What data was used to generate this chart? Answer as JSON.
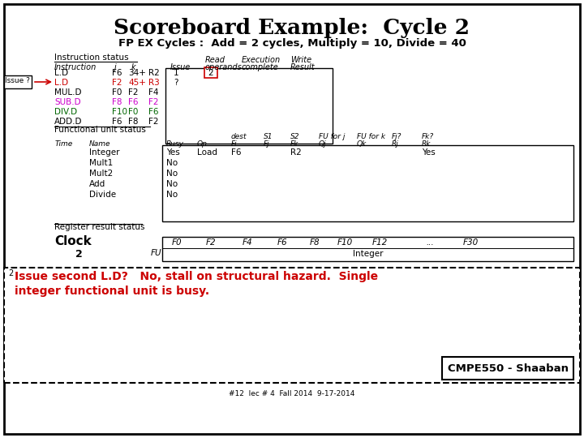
{
  "title": "Scoreboard Example:  Cycle 2",
  "subtitle": "FP EX Cycles :  Add = 2 cycles, Multiply = 10, Divide = 40",
  "bg_color": "#ffffff",
  "instruction_status_label": "Instruction status",
  "instructions": [
    {
      "name": "L.D",
      "j": "F6",
      "k": "34+",
      "dest": "R2",
      "issue": "1",
      "read": "2",
      "color": "#000000",
      "highlight_read": true
    },
    {
      "name": "L.D",
      "j": "F2",
      "k": "45+",
      "dest": "R3",
      "issue": "?",
      "read": "",
      "color": "#cc0000",
      "highlight_read": false
    },
    {
      "name": "MUL.DF0",
      "j": "F2",
      "k": "F4",
      "dest": "",
      "issue": "",
      "read": "",
      "color": "#000000",
      "highlight_read": false
    },
    {
      "name": "SUB.DF8",
      "j": "F6",
      "k": "F2",
      "dest": "",
      "issue": "",
      "read": "",
      "color": "#cc00cc",
      "highlight_read": false
    },
    {
      "name": "DIV.D F10",
      "j": "F0",
      "k": "F6",
      "dest": "",
      "issue": "",
      "read": "",
      "color": "#006600",
      "highlight_read": false
    },
    {
      "name": "ADD.DF6",
      "j": "F8",
      "k": "F2",
      "dest": "",
      "issue": "",
      "read": "",
      "color": "#000000",
      "highlight_read": false
    }
  ],
  "functional_unit_label": "Functional unit status",
  "fu_units": [
    {
      "name": "Integer",
      "busy": "Yes",
      "op": "Load",
      "fi": "F6",
      "fj": "",
      "fk": "R2",
      "qj": "",
      "qk": "",
      "rj": "",
      "rk": "Yes"
    },
    {
      "name": "Mult1",
      "busy": "No",
      "op": "",
      "fi": "",
      "fj": "",
      "fk": "",
      "qj": "",
      "qk": "",
      "rj": "",
      "rk": ""
    },
    {
      "name": "Mult2",
      "busy": "No",
      "op": "",
      "fi": "",
      "fj": "",
      "fk": "",
      "qj": "",
      "qk": "",
      "rj": "",
      "rk": ""
    },
    {
      "name": "Add",
      "busy": "No",
      "op": "",
      "fi": "",
      "fj": "",
      "fk": "",
      "qj": "",
      "qk": "",
      "rj": "",
      "rk": ""
    },
    {
      "name": "Divide",
      "busy": "No",
      "op": "",
      "fi": "",
      "fj": "",
      "fk": "",
      "qj": "",
      "qk": "",
      "rj": "",
      "rk": ""
    }
  ],
  "register_label": "Register result status",
  "clock_label": "Clock",
  "clock_value": "2",
  "fu_label": "FU",
  "reg_headers": [
    "F0",
    "F2",
    "F4",
    "F6",
    "F8",
    "F10",
    "F12",
    "...",
    "F30"
  ],
  "reg_integer_label": "Integer",
  "bottom_text1": "Issue second L.D?   No, stall on structural hazard.  Single",
  "bottom_text2": "integer functional unit is busy.",
  "bottom_color": "#cc0000",
  "cmpe_label": "CMPE550 - Shaaban",
  "footer": "#12  lec # 4  Fall 2014  9-17-2014",
  "issue_arrow_label": "Issue ?",
  "issue_arrow_color": "#cc0000"
}
